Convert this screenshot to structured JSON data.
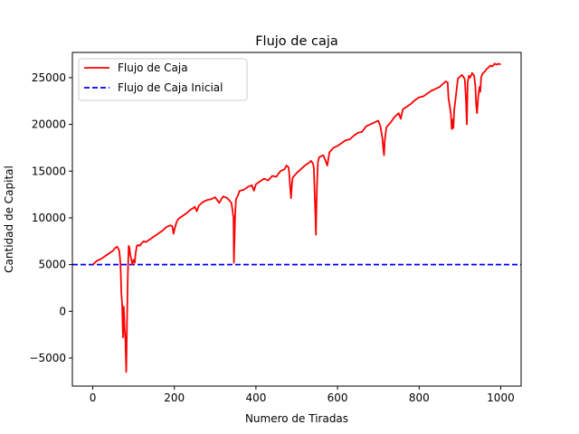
{
  "chart_data": {
    "type": "line",
    "title": "Flujo de caja",
    "xlabel": "Numero de Tiradas",
    "ylabel": "Cantidad de Capital",
    "xlim": [
      -50,
      1050
    ],
    "ylim": [
      -8000,
      27700
    ],
    "xticks": [
      0,
      200,
      400,
      600,
      800,
      1000
    ],
    "yticks": [
      -5000,
      0,
      5000,
      10000,
      15000,
      20000,
      25000
    ],
    "legend_position": "top-left",
    "grid": false,
    "series": [
      {
        "name": "Flujo de Caja",
        "color": "#ff0000",
        "style": "solid",
        "points": [
          [
            0,
            5000
          ],
          [
            5,
            5200
          ],
          [
            10,
            5400
          ],
          [
            20,
            5600
          ],
          [
            30,
            5900
          ],
          [
            40,
            6200
          ],
          [
            50,
            6500
          ],
          [
            55,
            6800
          ],
          [
            60,
            6900
          ],
          [
            65,
            6500
          ],
          [
            68,
            5000
          ],
          [
            70,
            2000
          ],
          [
            72,
            700
          ],
          [
            74,
            -2800
          ],
          [
            76,
            500
          ],
          [
            78,
            -1800
          ],
          [
            80,
            -3000
          ],
          [
            82,
            -6500
          ],
          [
            84,
            -1000
          ],
          [
            86,
            4000
          ],
          [
            88,
            7000
          ],
          [
            90,
            6800
          ],
          [
            92,
            6000
          ],
          [
            95,
            5500
          ],
          [
            97,
            5000
          ],
          [
            100,
            5500
          ],
          [
            103,
            5200
          ],
          [
            105,
            6200
          ],
          [
            108,
            7000
          ],
          [
            112,
            7100
          ],
          [
            115,
            7000
          ],
          [
            120,
            7300
          ],
          [
            125,
            7500
          ],
          [
            130,
            7400
          ],
          [
            140,
            7700
          ],
          [
            150,
            8000
          ],
          [
            160,
            8300
          ],
          [
            170,
            8600
          ],
          [
            180,
            9000
          ],
          [
            190,
            9200
          ],
          [
            195,
            9100
          ],
          [
            198,
            8300
          ],
          [
            200,
            8700
          ],
          [
            205,
            9500
          ],
          [
            210,
            9900
          ],
          [
            220,
            10200
          ],
          [
            230,
            10500
          ],
          [
            240,
            10900
          ],
          [
            245,
            11000
          ],
          [
            250,
            11200
          ],
          [
            255,
            10700
          ],
          [
            260,
            11300
          ],
          [
            270,
            11700
          ],
          [
            280,
            11900
          ],
          [
            290,
            12000
          ],
          [
            300,
            12200
          ],
          [
            310,
            11600
          ],
          [
            315,
            12000
          ],
          [
            320,
            12300
          ],
          [
            330,
            12100
          ],
          [
            336,
            11800
          ],
          [
            340,
            11600
          ],
          [
            345,
            10000
          ],
          [
            346,
            5200
          ],
          [
            347,
            7000
          ],
          [
            349,
            10200
          ],
          [
            351,
            12000
          ],
          [
            355,
            12300
          ],
          [
            360,
            12900
          ],
          [
            370,
            13000
          ],
          [
            380,
            13300
          ],
          [
            390,
            13500
          ],
          [
            395,
            12900
          ],
          [
            400,
            13600
          ],
          [
            410,
            13900
          ],
          [
            420,
            14200
          ],
          [
            430,
            14000
          ],
          [
            440,
            14500
          ],
          [
            450,
            14400
          ],
          [
            460,
            15000
          ],
          [
            470,
            15200
          ],
          [
            475,
            15600
          ],
          [
            480,
            15400
          ],
          [
            482,
            14500
          ],
          [
            484,
            13200
          ],
          [
            486,
            12100
          ],
          [
            488,
            13500
          ],
          [
            490,
            14300
          ],
          [
            500,
            14800
          ],
          [
            510,
            15200
          ],
          [
            520,
            15600
          ],
          [
            530,
            15900
          ],
          [
            535,
            16100
          ],
          [
            540,
            15800
          ],
          [
            542,
            15300
          ],
          [
            544,
            12500
          ],
          [
            546,
            10000
          ],
          [
            547,
            8200
          ],
          [
            548,
            10500
          ],
          [
            550,
            14000
          ],
          [
            552,
            16000
          ],
          [
            555,
            16500
          ],
          [
            565,
            16700
          ],
          [
            570,
            16200
          ],
          [
            575,
            15600
          ],
          [
            580,
            17000
          ],
          [
            590,
            17500
          ],
          [
            600,
            17700
          ],
          [
            610,
            18000
          ],
          [
            620,
            18300
          ],
          [
            630,
            18400
          ],
          [
            640,
            18800
          ],
          [
            650,
            19100
          ],
          [
            660,
            19200
          ],
          [
            670,
            19800
          ],
          [
            680,
            20000
          ],
          [
            690,
            20200
          ],
          [
            700,
            20400
          ],
          [
            705,
            19800
          ],
          [
            710,
            18500
          ],
          [
            712,
            17500
          ],
          [
            714,
            16700
          ],
          [
            716,
            18400
          ],
          [
            720,
            19700
          ],
          [
            730,
            20200
          ],
          [
            740,
            20800
          ],
          [
            750,
            21200
          ],
          [
            755,
            20600
          ],
          [
            760,
            21600
          ],
          [
            770,
            21900
          ],
          [
            780,
            22200
          ],
          [
            790,
            22600
          ],
          [
            800,
            22900
          ],
          [
            810,
            23000
          ],
          [
            820,
            23300
          ],
          [
            830,
            23600
          ],
          [
            840,
            23800
          ],
          [
            850,
            24000
          ],
          [
            860,
            24400
          ],
          [
            865,
            24600
          ],
          [
            870,
            24500
          ],
          [
            872,
            22800
          ],
          [
            875,
            22000
          ],
          [
            878,
            21000
          ],
          [
            880,
            19500
          ],
          [
            882,
            20500
          ],
          [
            884,
            19600
          ],
          [
            886,
            21500
          ],
          [
            890,
            23000
          ],
          [
            895,
            24900
          ],
          [
            900,
            25100
          ],
          [
            905,
            25300
          ],
          [
            910,
            25000
          ],
          [
            912,
            24800
          ],
          [
            915,
            22500
          ],
          [
            917,
            20000
          ],
          [
            919,
            24500
          ],
          [
            922,
            25200
          ],
          [
            925,
            25000
          ],
          [
            930,
            25500
          ],
          [
            935,
            25200
          ],
          [
            938,
            24000
          ],
          [
            940,
            22000
          ],
          [
            942,
            21200
          ],
          [
            945,
            23000
          ],
          [
            948,
            24000
          ],
          [
            950,
            23500
          ],
          [
            952,
            25000
          ],
          [
            955,
            25400
          ],
          [
            960,
            25600
          ],
          [
            965,
            25900
          ],
          [
            970,
            26100
          ],
          [
            975,
            26300
          ],
          [
            980,
            26200
          ],
          [
            985,
            26500
          ],
          [
            990,
            26400
          ],
          [
            995,
            26500
          ],
          [
            1000,
            26400
          ]
        ]
      },
      {
        "name": "Flujo de Caja Inicial",
        "color": "#0000ff",
        "style": "dashed",
        "points": [
          [
            -50,
            5000
          ],
          [
            1050,
            5000
          ]
        ]
      }
    ]
  }
}
